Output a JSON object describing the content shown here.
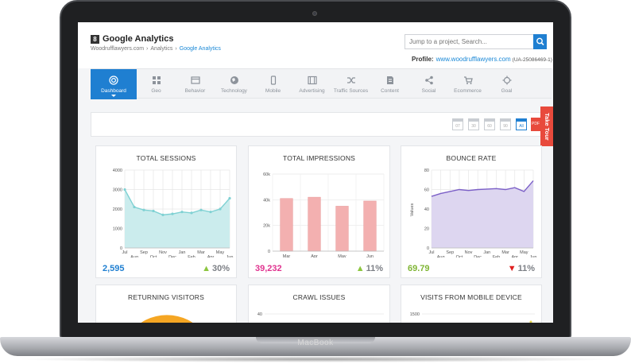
{
  "device": {
    "brand": "MacBook"
  },
  "app": {
    "logo_glyph": "8",
    "title": "Google Analytics",
    "breadcrumb": [
      "Woodrufflawyers.com",
      "Analytics",
      "Google Analytics"
    ],
    "search_placeholder": "Jump to a project, Search...",
    "profile_label": "Profile:",
    "profile_url": "www.woodrufflawyers.com",
    "profile_id": "(UA-25086469-1)"
  },
  "nav": [
    {
      "label": "Dashboard",
      "icon": "dashboard-icon",
      "active": true
    },
    {
      "label": "Geo",
      "icon": "grid-icon"
    },
    {
      "label": "Behavior",
      "icon": "browser-icon"
    },
    {
      "label": "Technology",
      "icon": "globe-icon"
    },
    {
      "label": "Mobile",
      "icon": "mobile-icon"
    },
    {
      "label": "Advertising",
      "icon": "film-icon"
    },
    {
      "label": "Traffic Sources",
      "icon": "shuffle-icon"
    },
    {
      "label": "Content",
      "icon": "document-icon"
    },
    {
      "label": "Social",
      "icon": "share-icon"
    },
    {
      "label": "Ecommerce",
      "icon": "cart-icon"
    },
    {
      "label": "Goal",
      "icon": "crosshair-icon"
    }
  ],
  "periods": [
    "07",
    "30",
    "60",
    "90",
    "All"
  ],
  "pdf_label": "PDF",
  "take_tour": "Take Tour",
  "colors": {
    "accent": "#1f7fd1",
    "red": "#e84a3c",
    "sessions_fill": "#cbeced",
    "sessions_line": "#7fd1d3",
    "impressions_bar": "#f3b0b0",
    "bounce_fill": "#ddd6f0",
    "bounce_line": "#7b5fc7",
    "up": "#8cc63f",
    "down": "#e02020"
  },
  "cards": {
    "sessions": {
      "title": "TOTAL SESSIONS",
      "stat": "2,595",
      "stat_color": "#1f7fd1",
      "change": "30%",
      "direction": "up"
    },
    "impressions": {
      "title": "TOTAL IMPRESSIONS",
      "stat": "39,232",
      "stat_color": "#e0338f",
      "change": "11%",
      "direction": "up"
    },
    "bounce": {
      "title": "BOUNCE RATE",
      "stat": "69.79",
      "stat_color": "#7fb534",
      "change": "11%",
      "direction": "down"
    },
    "returning": {
      "title": "RETURNING VISITORS"
    },
    "crawl": {
      "title": "CRAWL ISSUES"
    },
    "mobile": {
      "title": "VISITS FROM MOBILE DEVICE"
    }
  },
  "chart_data": [
    {
      "type": "area",
      "title": "TOTAL SESSIONS",
      "categories": [
        "Jul",
        "Aug",
        "Sep",
        "Oct",
        "Nov",
        "Dec",
        "Jan",
        "Feb",
        "Mar",
        "Apr",
        "May",
        "Jun"
      ],
      "values": [
        3000,
        2100,
        1950,
        1900,
        1700,
        1750,
        1850,
        1800,
        1950,
        1850,
        2000,
        2550
      ],
      "ylim": [
        0,
        4000
      ],
      "yticks": [
        0,
        1000,
        2000,
        3000,
        4000
      ],
      "grid": true
    },
    {
      "type": "bar",
      "title": "TOTAL IMPRESSIONS",
      "categories": [
        "Mar",
        "Apr",
        "May",
        "Jun"
      ],
      "values": [
        41000,
        42000,
        35000,
        39000
      ],
      "ylim": [
        0,
        60000
      ],
      "yticks": [
        "0",
        "20k",
        "40k",
        "60k"
      ],
      "grid": true
    },
    {
      "type": "area",
      "title": "BOUNCE RATE",
      "ylabel": "Values",
      "categories": [
        "Jul",
        "Aug",
        "Sep",
        "Oct",
        "Nov",
        "Dec",
        "Jan",
        "Feb",
        "Mar",
        "Apr",
        "May",
        "Jun"
      ],
      "values": [
        53,
        56,
        58,
        60,
        59,
        60,
        60.5,
        61,
        60,
        62,
        58,
        69
      ],
      "ylim": [
        0,
        80
      ],
      "yticks": [
        0,
        20,
        40,
        60,
        80
      ],
      "grid": true
    },
    {
      "type": "line",
      "title": "CRAWL ISSUES",
      "yticks": [
        40
      ],
      "values": []
    },
    {
      "type": "line",
      "title": "VISITS FROM MOBILE DEVICE",
      "yticks": [
        1500
      ],
      "values": []
    }
  ]
}
